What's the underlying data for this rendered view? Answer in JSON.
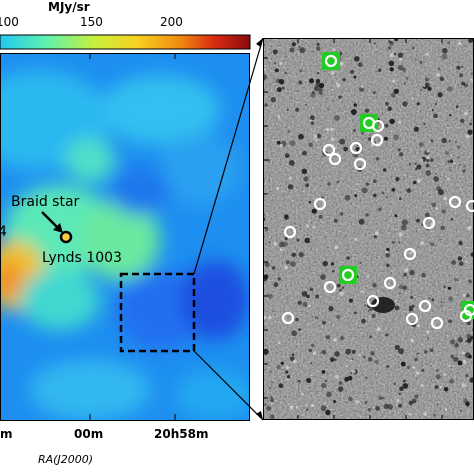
{
  "colorbar": {
    "unit": "MJy/sr",
    "ticks": [
      "100",
      "150",
      "200"
    ],
    "colors": [
      "#1a2bd6",
      "#1e6ff5",
      "#22c8f0",
      "#5cf0b0",
      "#c8f03c",
      "#f8d020",
      "#f08a10",
      "#d82a10",
      "#8a0a10"
    ]
  },
  "left_map": {
    "annotations": {
      "braid_star": "Braid star",
      "lynds": "Lynds 1003",
      "cut_label": "4"
    },
    "x_ticks": [
      "m",
      "00m",
      "20h58m"
    ],
    "x_axis_label": "RA(J2000)"
  },
  "right_image": {
    "marker_color": "#22cc22",
    "white_circles": 20,
    "green_boxes": 4
  }
}
